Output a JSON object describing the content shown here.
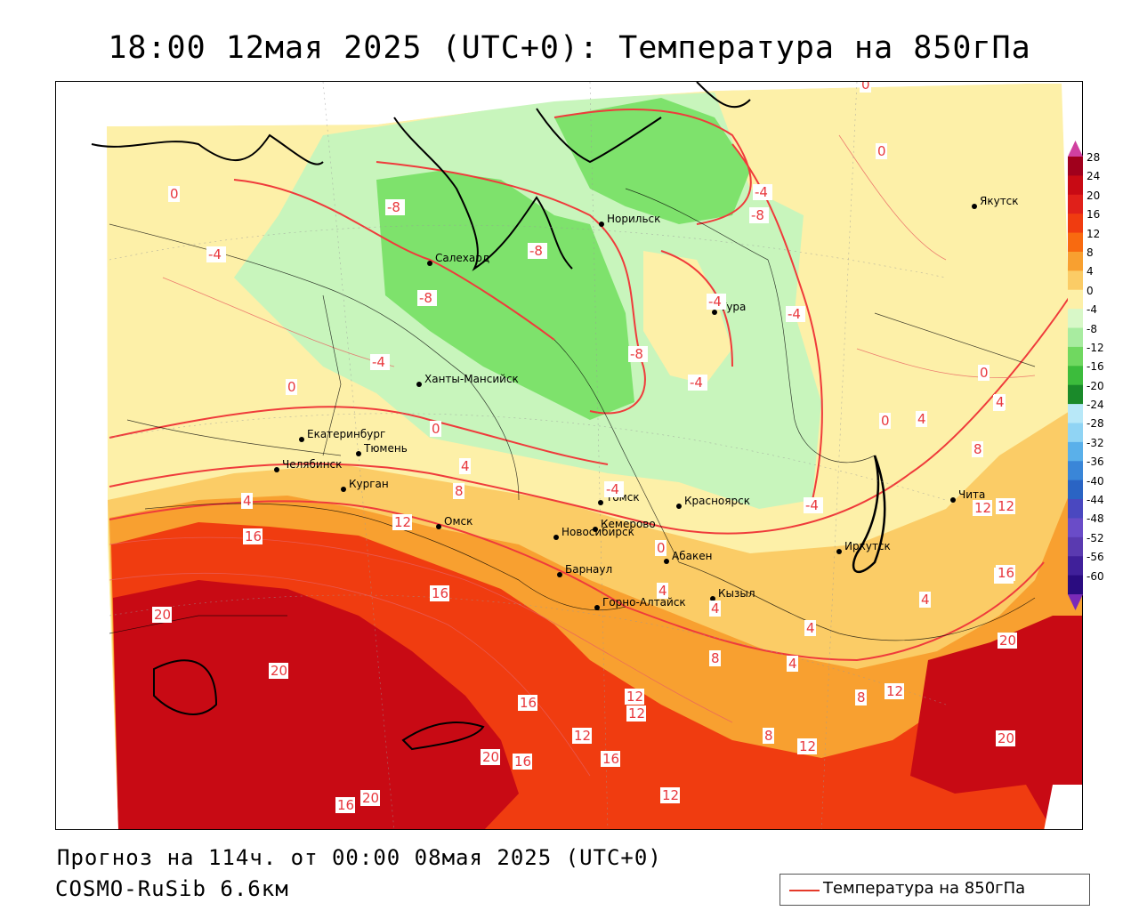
{
  "title": "18:00 12мая 2025 (UTC+0): Температура на 850гПа",
  "forecast_line": "Прогноз на 114ч. от 00:00 08мая 2025 (UTC+0)",
  "model_line": "COSMO-RuSib 6.6км",
  "legend": {
    "label": "Температура на 850гПа",
    "line_color": "#e53a2a"
  },
  "colorbar": {
    "labels": [
      "28",
      "24",
      "20",
      "16",
      "12",
      "8",
      "4",
      "0",
      "-4",
      "-8",
      "-12",
      "-16",
      "-20",
      "-24",
      "-28",
      "-32",
      "-36",
      "-40",
      "-44",
      "-48",
      "-52",
      "-56",
      "-60"
    ],
    "colors": [
      "#a0001c",
      "#c80a14",
      "#e0201a",
      "#f03c10",
      "#f86a10",
      "#f8a030",
      "#fbcc66",
      "#fdf0a8",
      "#d8f8c8",
      "#a8ecA0",
      "#70d860",
      "#3cbc3c",
      "#1a8a2a",
      "#b8e8f8",
      "#90d4f4",
      "#5ab0ea",
      "#3a86d8",
      "#2a64c4",
      "#4a48c0",
      "#6a4cc8",
      "#5a3ab0",
      "#40209a",
      "#2a0c80"
    ],
    "top_arrow_color": "#d040a0",
    "bottom_arrow_color": "#7a2ab8"
  },
  "cities": [
    {
      "name": "Якутск"
    },
    {
      "name": "Норильск"
    },
    {
      "name": "Салехард"
    },
    {
      "name": "Тура"
    },
    {
      "name": "Ханты-Мансийск"
    },
    {
      "name": "Екатеринбург"
    },
    {
      "name": "Тюмень"
    },
    {
      "name": "Челябинск"
    },
    {
      "name": "Курган"
    },
    {
      "name": "Омск"
    },
    {
      "name": "Новосибирск"
    },
    {
      "name": "Томск"
    },
    {
      "name": "Кемерово"
    },
    {
      "name": "Красноярск"
    },
    {
      "name": "Абакен"
    },
    {
      "name": "Барнаул"
    },
    {
      "name": "Горно-Алтайск"
    },
    {
      "name": "Кызыл"
    },
    {
      "name": "Иркутск"
    },
    {
      "name": "Чита"
    }
  ],
  "isotherm_labels": [
    "0",
    "0",
    "0",
    "-4",
    "-8",
    "-4",
    "-8",
    "-8",
    "-8",
    "-4",
    "-4",
    "-8",
    "-4",
    "-4",
    "0",
    "0",
    "-4",
    "-4",
    "4",
    "4",
    "8",
    "12",
    "16",
    "0",
    "4",
    "4",
    "8",
    "12",
    "16",
    "20",
    "20",
    "16",
    "12",
    "20",
    "16",
    "16",
    "12",
    "20",
    "16",
    "12",
    "8",
    "12",
    "16",
    "20",
    "4",
    "4",
    "8",
    "4",
    "16",
    "20",
    "12",
    "0",
    "8",
    "4",
    "4",
    "12",
    "12",
    "0",
    "4"
  ]
}
